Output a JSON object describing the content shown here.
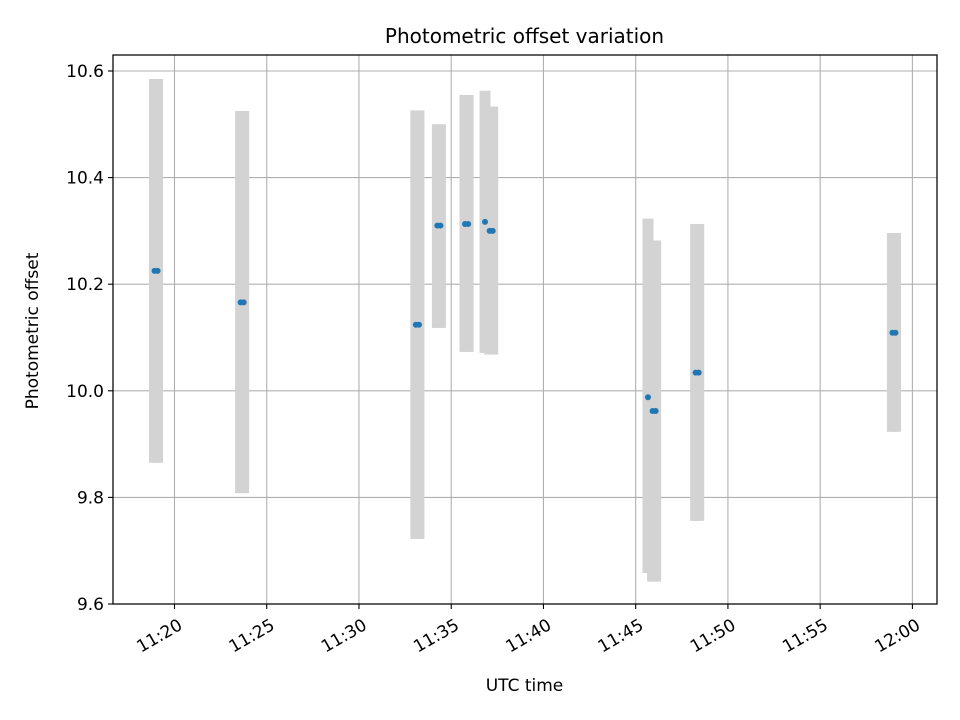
{
  "chart_data": {
    "type": "scatter",
    "title": "Photometric offset variation",
    "xlabel": "UTC time",
    "ylabel": "Photometric offset",
    "x_is_time": true,
    "xlim": [
      "11:16:40",
      "12:01:20"
    ],
    "ylim": [
      9.6,
      10.63
    ],
    "x_ticks": [
      "11:20",
      "11:25",
      "11:30",
      "11:35",
      "11:40",
      "11:45",
      "11:50",
      "11:55",
      "12:00"
    ],
    "y_ticks": [
      9.6,
      9.8,
      10.0,
      10.2,
      10.4,
      10.6
    ],
    "y_tick_labels": [
      "9.6",
      "9.8",
      "10.0",
      "10.2",
      "10.4",
      "10.6"
    ],
    "grid": true,
    "series": [
      {
        "marker_color": "#1f77b4",
        "errorbar_color": "#d3d3d3",
        "points": [
          {
            "x": "11:18:55",
            "y": 10.225,
            "ylo": 9.865,
            "yhi": 10.585
          },
          {
            "x": "11:19:05",
            "y": 10.225,
            "ylo": 9.865,
            "yhi": 10.585
          },
          {
            "x": "11:23:35",
            "y": 10.166,
            "ylo": 9.808,
            "yhi": 10.525
          },
          {
            "x": "11:23:45",
            "y": 10.166,
            "ylo": 9.808,
            "yhi": 10.525
          },
          {
            "x": "11:33:05",
            "y": 10.124,
            "ylo": 9.722,
            "yhi": 10.526
          },
          {
            "x": "11:33:15",
            "y": 10.124,
            "ylo": 9.722,
            "yhi": 10.526
          },
          {
            "x": "11:34:15",
            "y": 10.31,
            "ylo": 10.118,
            "yhi": 10.5
          },
          {
            "x": "11:34:25",
            "y": 10.31,
            "ylo": 10.118,
            "yhi": 10.5
          },
          {
            "x": "11:35:45",
            "y": 10.313,
            "ylo": 10.073,
            "yhi": 10.555
          },
          {
            "x": "11:35:55",
            "y": 10.313,
            "ylo": 10.073,
            "yhi": 10.555
          },
          {
            "x": "11:36:50",
            "y": 10.317,
            "ylo": 10.071,
            "yhi": 10.563
          },
          {
            "x": "11:37:05",
            "y": 10.3,
            "ylo": 10.068,
            "yhi": 10.533
          },
          {
            "x": "11:37:15",
            "y": 10.3,
            "ylo": 10.068,
            "yhi": 10.533
          },
          {
            "x": "11:45:40",
            "y": 9.988,
            "ylo": 9.658,
            "yhi": 10.323
          },
          {
            "x": "11:45:55",
            "y": 9.962,
            "ylo": 9.642,
            "yhi": 10.282
          },
          {
            "x": "11:46:05",
            "y": 9.962,
            "ylo": 9.642,
            "yhi": 10.282
          },
          {
            "x": "11:48:15",
            "y": 10.034,
            "ylo": 9.756,
            "yhi": 10.313
          },
          {
            "x": "11:48:25",
            "y": 10.034,
            "ylo": 9.756,
            "yhi": 10.313
          },
          {
            "x": "11:58:55",
            "y": 10.109,
            "ylo": 9.923,
            "yhi": 10.296
          },
          {
            "x": "11:59:05",
            "y": 10.109,
            "ylo": 9.923,
            "yhi": 10.296
          }
        ]
      }
    ]
  }
}
